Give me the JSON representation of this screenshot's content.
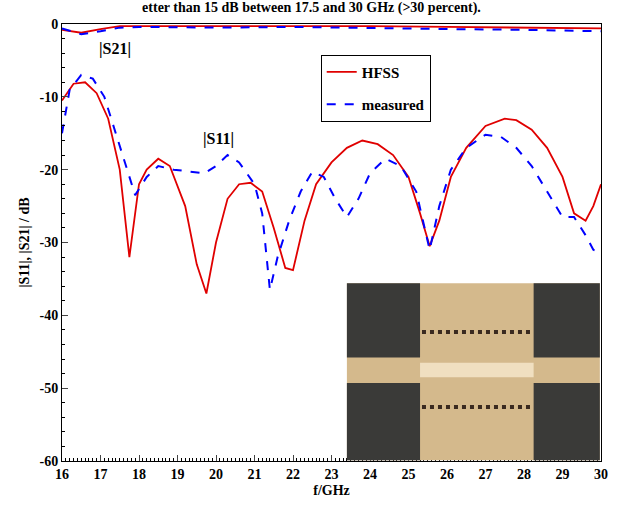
{
  "chart_data": {
    "type": "line",
    "title": "etter than 15 dB between 17.5 and 30 GHz (>30 percent).",
    "x_label": "f/GHz",
    "y_label": "|S11|, |S21| / dB",
    "xlim": [
      16,
      30
    ],
    "xticks": [
      16,
      17,
      18,
      19,
      20,
      21,
      22,
      23,
      24,
      25,
      26,
      27,
      28,
      29,
      30
    ],
    "ylim": [
      -60,
      0
    ],
    "yticks": [
      -60,
      -50,
      -40,
      -30,
      -20,
      -10,
      0
    ],
    "grid": false,
    "legend": "top",
    "annotations": [
      {
        "text": "|S21|",
        "x": 16.9,
        "y": -3.5
      },
      {
        "text": "|S11|",
        "x": 19.6,
        "y": -15.8
      }
    ],
    "series": [
      {
        "name": "HFSS",
        "color": "#e00000",
        "line_style": "solid",
        "x": [
          16,
          16.3,
          16.6,
          16.9,
          17.2,
          17.5,
          17.75,
          18,
          18.2,
          18.5,
          18.8,
          19.2,
          19.5,
          19.75,
          20,
          20.3,
          20.6,
          20.9,
          21.2,
          21.5,
          21.8,
          22,
          22.3,
          22.6,
          23,
          23.4,
          23.8,
          24.2,
          24.6,
          25,
          25.3,
          25.55,
          25.8,
          26.1,
          26.5,
          27,
          27.5,
          27.8,
          28.2,
          28.6,
          29,
          29.3,
          29.6,
          29.8,
          30
        ],
        "values": [
          -10.5,
          -8.2,
          -8,
          -9.5,
          -13,
          -20,
          -32,
          -22,
          -20,
          -18.5,
          -19.5,
          -25,
          -33,
          -37,
          -30,
          -24,
          -22,
          -21.8,
          -23,
          -28,
          -33.5,
          -33.8,
          -27,
          -22,
          -19,
          -17,
          -16,
          -16.5,
          -18,
          -21,
          -26,
          -30.5,
          -27,
          -21,
          -17,
          -14,
          -13,
          -13.2,
          -14.5,
          -17,
          -21,
          -26,
          -27,
          -25,
          -22
        ]
      },
      {
        "name": "measured",
        "color": "#0000ff",
        "line_style": "dash",
        "x": [
          16,
          16.2,
          16.5,
          16.8,
          17.1,
          17.4,
          17.7,
          17.9,
          18.2,
          18.5,
          18.9,
          19.3,
          19.7,
          20,
          20.3,
          20.6,
          21,
          21.2,
          21.4,
          21.6,
          21.9,
          22.2,
          22.5,
          22.8,
          23.1,
          23.4,
          23.7,
          24,
          24.4,
          24.8,
          25.2,
          25.55,
          25.8,
          26.1,
          26.5,
          27,
          27.4,
          27.8,
          28.2,
          28.6,
          29,
          29.3,
          29.6,
          29.8,
          30
        ],
        "values": [
          -15,
          -9,
          -7,
          -7.5,
          -10,
          -15,
          -20,
          -23.5,
          -21,
          -19.5,
          -20,
          -20.3,
          -20.5,
          -19.5,
          -18,
          -19,
          -22,
          -26,
          -36.5,
          -32,
          -27,
          -23,
          -20.3,
          -21,
          -24,
          -26.5,
          -24,
          -20.5,
          -18.5,
          -19.5,
          -23,
          -31,
          -25,
          -20,
          -17,
          -15.2,
          -15.5,
          -17,
          -19.5,
          -23,
          -26.5,
          -26.5,
          -29,
          -31,
          -31.5
        ]
      },
      {
        "name": "HFSS",
        "color": "#e00000",
        "line_style": "solid",
        "x": [
          16,
          16.5,
          17,
          17.5,
          18,
          20,
          22,
          24,
          26,
          28,
          30
        ],
        "values": [
          -0.8,
          -1.2,
          -0.7,
          -0.3,
          -0.3,
          -0.3,
          -0.2,
          -0.3,
          -0.4,
          -0.5,
          -0.6
        ]
      },
      {
        "name": "measured",
        "color": "#0000ff",
        "line_style": "dash",
        "x": [
          16,
          16.5,
          17,
          17.5,
          18,
          20,
          22,
          24,
          26,
          28,
          30
        ],
        "values": [
          -0.6,
          -1.4,
          -1,
          -0.5,
          -0.4,
          -0.5,
          -0.4,
          -0.6,
          -0.7,
          -0.8,
          -1
        ]
      }
    ]
  }
}
